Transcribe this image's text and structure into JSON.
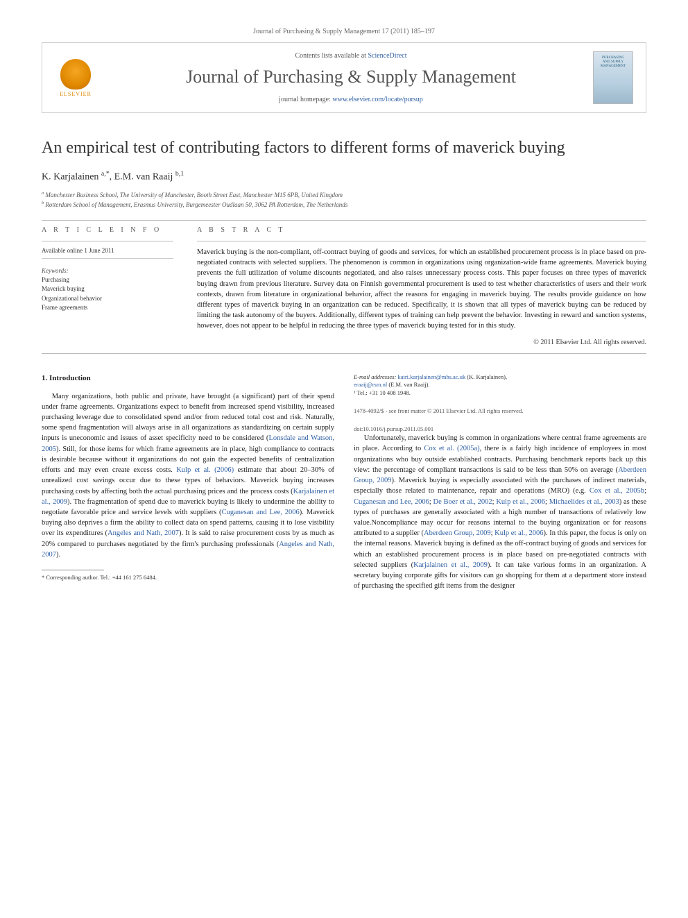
{
  "journal_ref": "Journal of Purchasing & Supply Management 17 (2011) 185–197",
  "header": {
    "contents_prefix": "Contents lists available at ",
    "contents_link": "ScienceDirect",
    "journal_title": "Journal of Purchasing & Supply Management",
    "homepage_prefix": "journal homepage: ",
    "homepage_url": "www.elsevier.com/locate/pursup",
    "elsevier": "ELSEVIER",
    "cover_line1": "PURCHASING",
    "cover_line2": "AND SUPPLY",
    "cover_line3": "MANAGEMENT"
  },
  "article": {
    "title": "An empirical test of contributing factors to different forms of maverick buying",
    "authors_html": "K. Karjalainen <sup>a,*</sup>, E.M. van Raaij <sup>b,1</sup>",
    "affiliations": {
      "a": "Manchester Business School, The University of Manchester, Booth Street East, Manchester M15 6PB, United Kingdom",
      "b": "Rotterdam School of Management, Erasmus University, Burgemeester Oudlaan 50, 3062 PA Rotterdam, The Netherlands"
    }
  },
  "info": {
    "label": "A R T I C L E  I N F O",
    "available": "Available online 1 June 2011",
    "keywords_label": "Keywords:",
    "keywords": [
      "Purchasing",
      "Maverick buying",
      "Organizational behavior",
      "Frame agreements"
    ]
  },
  "abstract": {
    "label": "A B S T R A C T",
    "text": "Maverick buying is the non-compliant, off-contract buying of goods and services, for which an established procurement process is in place based on pre-negotiated contracts with selected suppliers. The phenomenon is common in organizations using organization-wide frame agreements. Maverick buying prevents the full utilization of volume discounts negotiated, and also raises unnecessary process costs. This paper focuses on three types of maverick buying drawn from previous literature. Survey data on Finnish governmental procurement is used to test whether characteristics of users and their work contexts, drawn from literature in organizational behavior, affect the reasons for engaging in maverick buying. The results provide guidance on how different types of maverick buying in an organization can be reduced. Specifically, it is shown that all types of maverick buying can be reduced by limiting the task autonomy of the buyers. Additionally, different types of training can help prevent the behavior. Investing in reward and sanction systems, however, does not appear to be helpful in reducing the three types of maverick buying tested for in this study.",
    "copyright": "© 2011 Elsevier Ltd. All rights reserved."
  },
  "body": {
    "heading": "1. Introduction",
    "para1_a": "Many organizations, both public and private, have brought (a significant) part of their spend under frame agreements. Organizations expect to benefit from increased spend visibility, increased purchasing leverage due to consolidated spend and/or from reduced total cost and risk. Naturally, some spend fragmentation will always arise in all organizations as standardizing on certain supply inputs is uneconomic and issues of asset specificity need to be considered (",
    "cite1": "Lonsdale and Watson, 2005",
    "para1_b": "). Still, for those items for which frame agreements are in place, high compliance to contracts is desirable because without it organizations do not gain the expected benefits of centralization efforts and may even create excess costs. ",
    "cite2": "Kulp et al. (2006)",
    "para1_c": " estimate that about 20–30% of unrealized cost savings occur due to these types of behaviors. Maverick buying increases purchasing costs by affecting both the actual purchasing prices and the process costs (",
    "cite3": "Karjalainen et al., 2009",
    "para1_d": "). The fragmentation of spend due to maverick buying is likely to undermine the ability to negotiate favorable price and service levels with suppliers (",
    "cite4": "Cuganesan and Lee, 2006",
    "para1_e": "). Maverick buying also deprives a firm the ability to collect data on spend patterns, causing it to lose visibility over its expenditures (",
    "cite5": "Angeles and Nath, 2007",
    "para1_f": "). It is said to raise procurement costs by as much as 20% compared to purchases negotiated by the firm's purchasing professionals (",
    "cite6": "Angeles and Nath, 2007",
    "para1_g": ").",
    "para2_a": "Unfortunately, maverick buying is common in organizations where central frame agreements are in place. According to ",
    "cite7": "Cox et al. (2005a)",
    "para2_b": ", there is a fairly high incidence of employees in most organizations who buy outside established contracts. Purchasing benchmark reports back up this view: the percentage of compliant transactions is said to be less than 50% on average (",
    "cite8": "Aberdeen Group, 2009",
    "para2_c": "). Maverick buying is especially associated with the purchases of indirect materials, especially those related to maintenance, repair and operations (MRO) (e.g. ",
    "cite9": "Cox et al., 2005b",
    "para2_d": "; ",
    "cite10": "Cuganesan and Lee, 2006",
    "para2_e": "; ",
    "cite11": "De Boer et al., 2002",
    "para2_f": "; ",
    "cite12": "Kulp et al., 2006",
    "para2_g": "; ",
    "cite13": "Michaelides et al., 2003",
    "para2_h": ") as these types of purchases are generally associated with a high number of transactions of relatively low value.Noncompliance may occur for reasons internal to the buying organization or for reasons attributed to a supplier (",
    "cite14": "Aberdeen Group, 2009",
    "para2_i": "; ",
    "cite15": "Kulp et al., 2006",
    "para2_j": "). In this paper, the focus is only on the internal reasons. Maverick buying is defined as the off-contract buying of goods and services for which an established procurement process is in place based on pre-negotiated contracts with selected suppliers (",
    "cite16": "Karjalainen et al., 2009",
    "para2_k": "). It can take various forms in an organization. A secretary buying corporate gifts for visitors can go shopping for them at a department store instead of purchasing the specified gift items from the designer"
  },
  "footnotes": {
    "corr": "* Corresponding author. Tel.: +44 161 275 6484.",
    "email_label": "E-mail addresses:",
    "email1": "katri.karjalainen@mbs.ac.uk",
    "email1_who": " (K. Karjalainen),",
    "email2": "eraaij@rsm.nl",
    "email2_who": " (E.M. van Raaij).",
    "tel1": "¹ Tel.: +31 10 408 1948."
  },
  "bottom": {
    "issn": "1478-4092/$ - see front matter © 2011 Elsevier Ltd. All rights reserved.",
    "doi": "doi:10.1016/j.pursup.2011.05.001"
  },
  "colors": {
    "link": "#2e5fa3",
    "text": "#333333",
    "rule": "#bbbbbb"
  }
}
